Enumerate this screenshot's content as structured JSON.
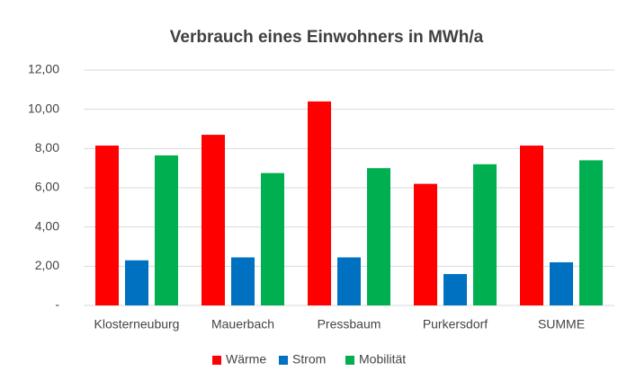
{
  "chart_data": {
    "type": "bar",
    "title": "Verbrauch eines Einwohners in MWh/a",
    "categories": [
      "Klosterneuburg",
      "Mauerbach",
      "Pressbaum",
      "Purkersdorf",
      "SUMME"
    ],
    "series": [
      {
        "name": "Wärme",
        "color": "#ff0000",
        "values": [
          8.15,
          8.7,
          10.4,
          6.2,
          8.15
        ]
      },
      {
        "name": "Strom",
        "color": "#0070c0",
        "values": [
          2.3,
          2.45,
          2.45,
          1.6,
          2.2
        ]
      },
      {
        "name": "Mobilität",
        "color": "#00b050",
        "values": [
          7.65,
          6.75,
          7.0,
          7.2,
          7.4
        ]
      }
    ],
    "ylim": [
      0,
      12
    ],
    "yticks": [
      {
        "value": 0,
        "label": "-"
      },
      {
        "value": 2,
        "label": "2,00"
      },
      {
        "value": 4,
        "label": "4,00"
      },
      {
        "value": 6,
        "label": "6,00"
      },
      {
        "value": 8,
        "label": "8,00"
      },
      {
        "value": 10,
        "label": "10,00"
      },
      {
        "value": 12,
        "label": "12,00"
      }
    ],
    "grid": true,
    "legend": "bottom"
  }
}
